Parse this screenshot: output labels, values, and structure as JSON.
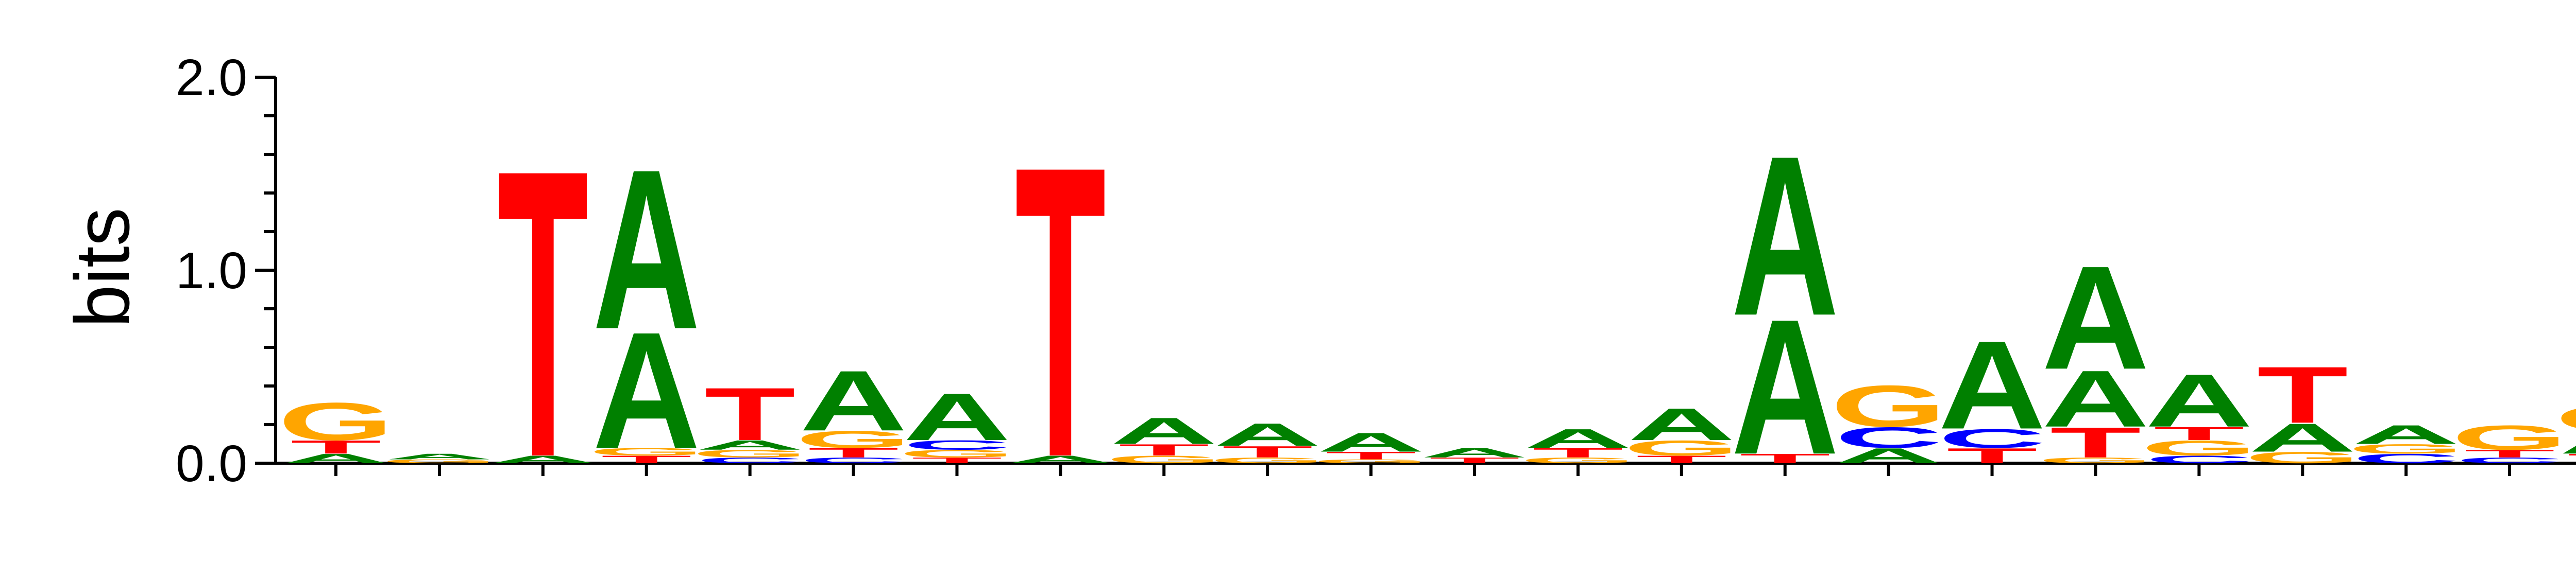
{
  "chart_data": {
    "type": "sequence-logo",
    "ylabel": "bits",
    "ylim": [
      0,
      2.0
    ],
    "y_tick_labels": [
      "0.0",
      "1.0",
      "2.0"
    ],
    "x_tick_count": 23,
    "colors": {
      "A": "#008000",
      "C": "#0000ff",
      "G": "#ffa500",
      "T": "#ff0000"
    },
    "positions": [
      [
        {
          "letter": "A",
          "bits": 0.05
        },
        {
          "letter": "T",
          "bits": 0.07
        },
        {
          "letter": "G",
          "bits": 0.2
        }
      ],
      [
        {
          "letter": "G",
          "bits": 0.02
        },
        {
          "letter": "A",
          "bits": 0.03
        }
      ],
      [
        {
          "letter": "A",
          "bits": 0.04
        },
        {
          "letter": "T",
          "bits": 1.53
        }
      ],
      [
        {
          "letter": "T",
          "bits": 0.04
        },
        {
          "letter": "G",
          "bits": 0.04
        },
        {
          "letter": "A",
          "bits": 0.62
        },
        {
          "letter": "A",
          "bits": 0.85
        }
      ],
      [
        {
          "letter": "C",
          "bits": 0.03
        },
        {
          "letter": "G",
          "bits": 0.04
        },
        {
          "letter": "A",
          "bits": 0.05
        },
        {
          "letter": "T",
          "bits": 0.28
        }
      ],
      [
        {
          "letter": "C",
          "bits": 0.03
        },
        {
          "letter": "T",
          "bits": 0.05
        },
        {
          "letter": "G",
          "bits": 0.09
        },
        {
          "letter": "A",
          "bits": 0.32
        }
      ],
      [
        {
          "letter": "T",
          "bits": 0.03
        },
        {
          "letter": "G",
          "bits": 0.04
        },
        {
          "letter": "C",
          "bits": 0.05
        },
        {
          "letter": "A",
          "bits": 0.25
        }
      ],
      [
        {
          "letter": "A",
          "bits": 0.04
        },
        {
          "letter": "T",
          "bits": 1.55
        }
      ],
      [
        {
          "letter": "G",
          "bits": 0.04
        },
        {
          "letter": "T",
          "bits": 0.06
        },
        {
          "letter": "A",
          "bits": 0.14
        }
      ],
      [
        {
          "letter": "G",
          "bits": 0.03
        },
        {
          "letter": "T",
          "bits": 0.06
        },
        {
          "letter": "A",
          "bits": 0.12
        }
      ],
      [
        {
          "letter": "G",
          "bits": 0.02
        },
        {
          "letter": "T",
          "bits": 0.04
        },
        {
          "letter": "A",
          "bits": 0.1
        }
      ],
      [
        {
          "letter": "T",
          "bits": 0.03
        },
        {
          "letter": "A",
          "bits": 0.05
        }
      ],
      [
        {
          "letter": "G",
          "bits": 0.03
        },
        {
          "letter": "T",
          "bits": 0.05
        },
        {
          "letter": "A",
          "bits": 0.1
        }
      ],
      [
        {
          "letter": "T",
          "bits": 0.04
        },
        {
          "letter": "G",
          "bits": 0.08
        },
        {
          "letter": "A",
          "bits": 0.17
        }
      ],
      [
        {
          "letter": "T",
          "bits": 0.05
        },
        {
          "letter": "A",
          "bits": 0.72
        },
        {
          "letter": "A",
          "bits": 0.85
        }
      ],
      [
        {
          "letter": "A",
          "bits": 0.08
        },
        {
          "letter": "C",
          "bits": 0.11
        },
        {
          "letter": "G",
          "bits": 0.22
        }
      ],
      [
        {
          "letter": "T",
          "bits": 0.08
        },
        {
          "letter": "C",
          "bits": 0.1
        },
        {
          "letter": "A",
          "bits": 0.47
        }
      ],
      [
        {
          "letter": "G",
          "bits": 0.03
        },
        {
          "letter": "T",
          "bits": 0.16
        },
        {
          "letter": "A",
          "bits": 0.3
        },
        {
          "letter": "A",
          "bits": 0.55
        }
      ],
      [
        {
          "letter": "C",
          "bits": 0.04
        },
        {
          "letter": "G",
          "bits": 0.08
        },
        {
          "letter": "T",
          "bits": 0.07
        },
        {
          "letter": "A",
          "bits": 0.28
        }
      ],
      [
        {
          "letter": "G",
          "bits": 0.06
        },
        {
          "letter": "A",
          "bits": 0.15
        },
        {
          "letter": "T",
          "bits": 0.3
        }
      ],
      [
        {
          "letter": "C",
          "bits": 0.05
        },
        {
          "letter": "G",
          "bits": 0.05
        },
        {
          "letter": "A",
          "bits": 0.1
        }
      ],
      [
        {
          "letter": "C",
          "bits": 0.03
        },
        {
          "letter": "T",
          "bits": 0.04
        },
        {
          "letter": "G",
          "bits": 0.13
        }
      ],
      [
        {
          "letter": "T",
          "bits": 0.05
        },
        {
          "letter": "A",
          "bits": 0.12
        },
        {
          "letter": "G",
          "bits": 0.13
        }
      ]
    ]
  }
}
